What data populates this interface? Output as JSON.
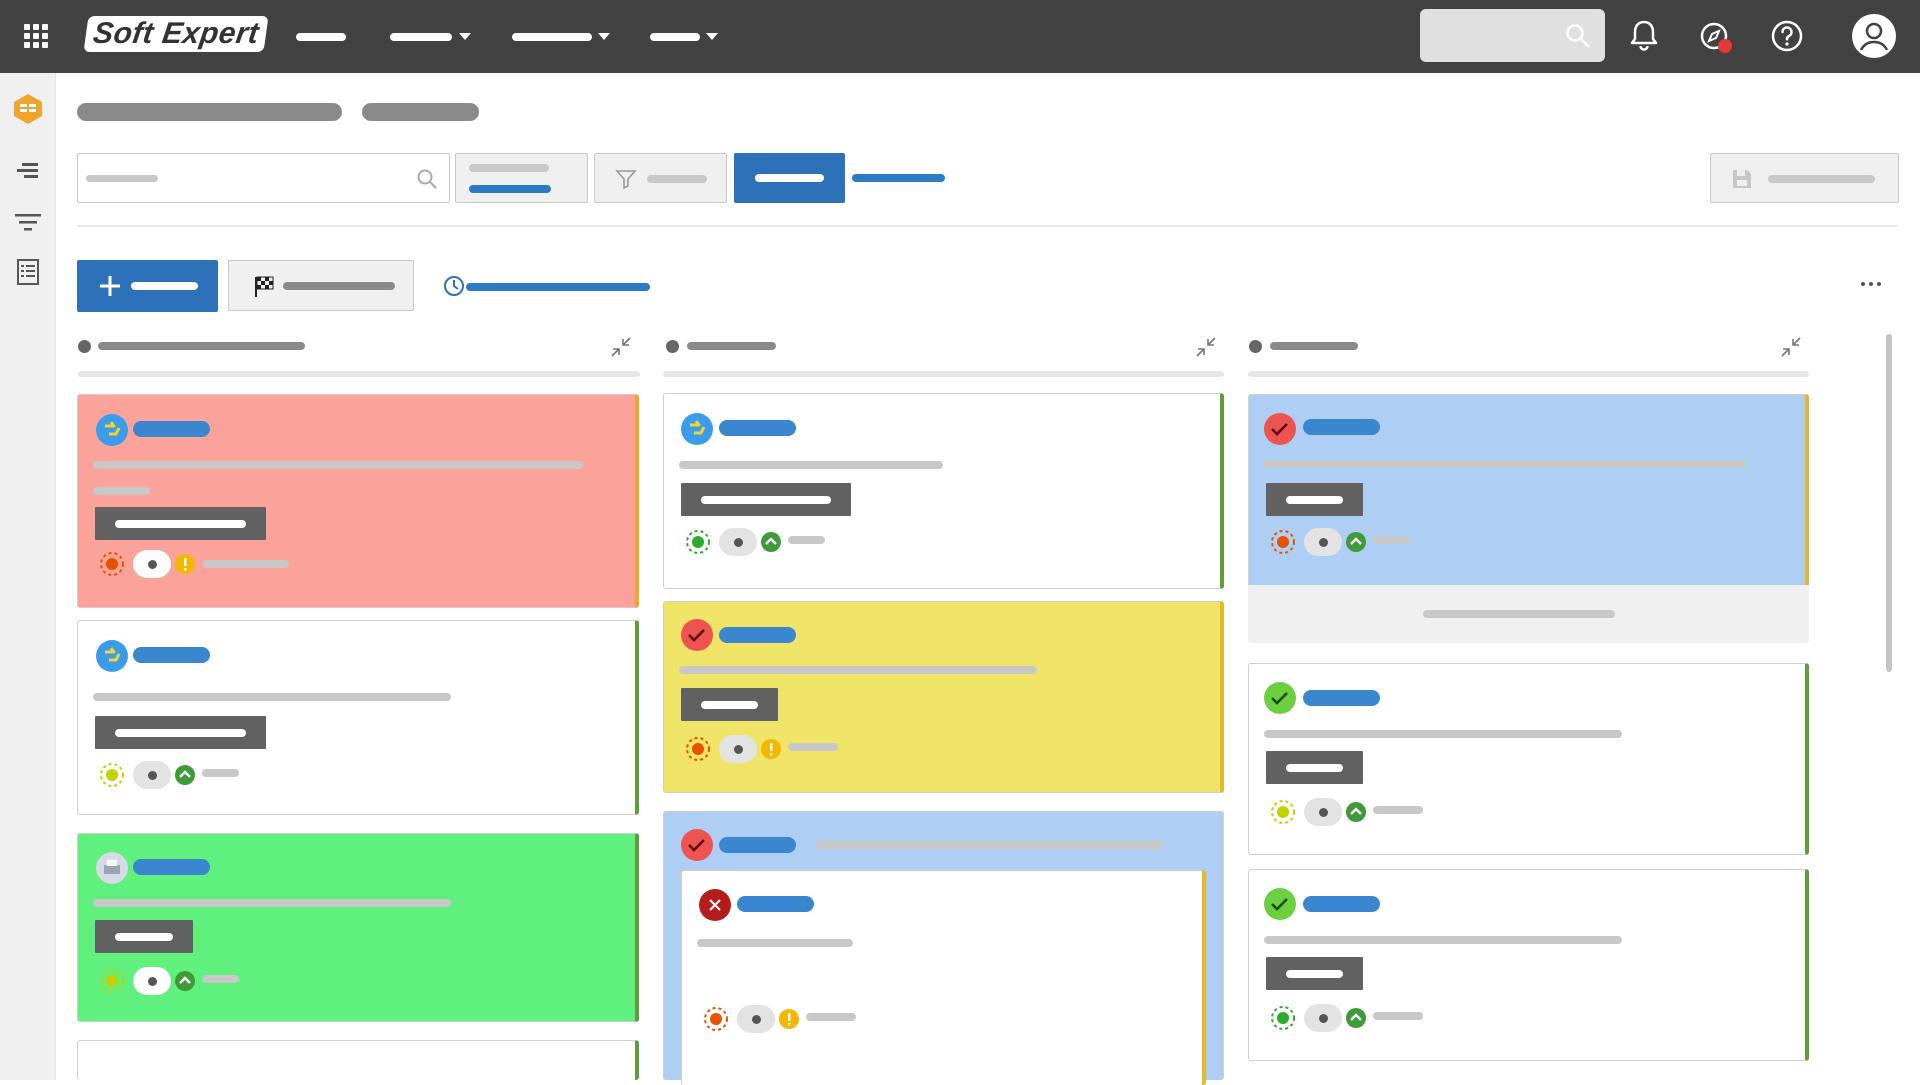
{
  "app": {
    "brand": "Soft Expert"
  },
  "colors": {
    "topbar": "#424242",
    "primary": "#2d72b8",
    "card_pink": "#fba39b",
    "card_green": "#5ff07d",
    "card_yellow": "#f0e468",
    "card_blue": "#aecff3"
  },
  "icons": {
    "apps": "grid-icon",
    "search": "search-icon",
    "bell": "bell-icon",
    "compass": "compass-icon",
    "help": "help-icon",
    "user": "user-icon",
    "collapse": "collapse-icon",
    "history": "clock-icon",
    "filter": "filter-icon",
    "save": "save-icon",
    "flag": "checkered-flag-icon",
    "add": "plus-icon",
    "more": "more-dots-icon"
  }
}
